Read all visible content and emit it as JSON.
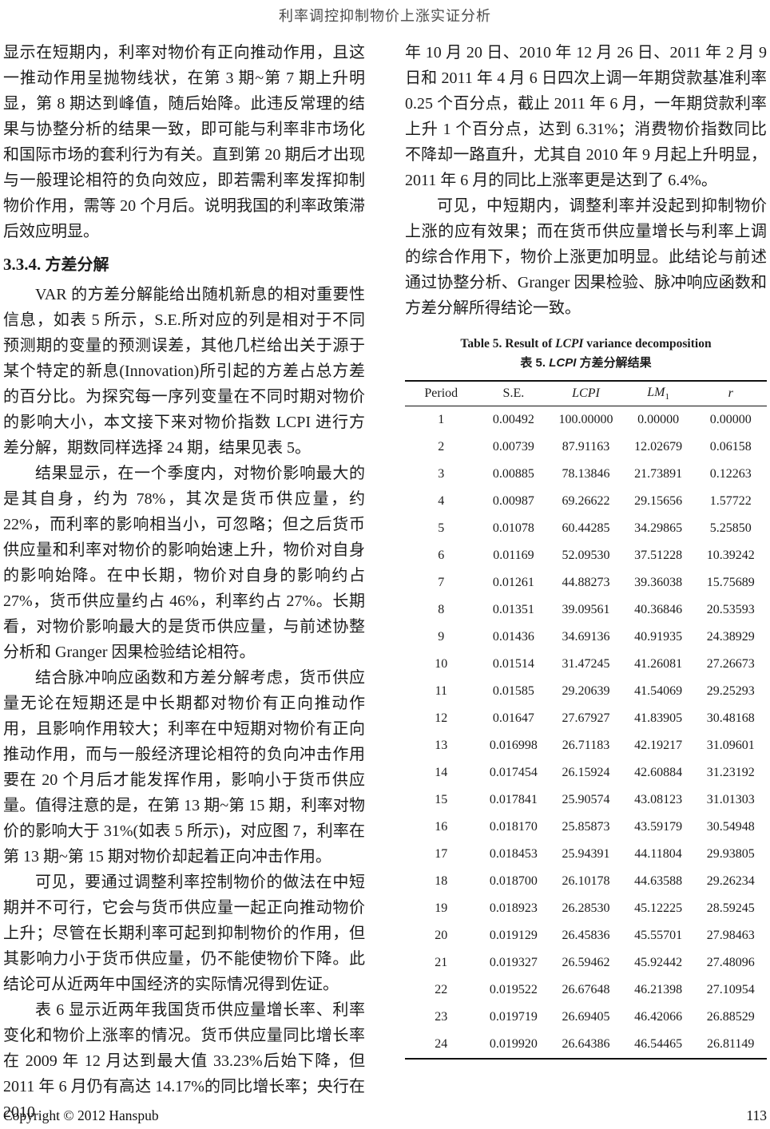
{
  "page": {
    "header_title": "利率调控抑制物价上涨实证分析",
    "footer": {
      "copyright": "Copyright © 2012 Hanspub",
      "page_number": "113"
    }
  },
  "left_column": {
    "para1": "显示在短期内，利率对物价有正向推动作用，且这一推动作用呈抛物线状，在第 3 期~第 7 期上升明显，第 8 期达到峰值，随后始降。此违反常理的结果与协整分析的结果一致，即可能与利率非市场化和国际市场的套利行为有关。直到第 20 期后才出现与一般理论相符的负向效应，即若需利率发挥抑制物价作用，需等 20 个月后。说明我国的利率政策滞后效应明显。",
    "section_heading": {
      "number": "3.3.4.",
      "title": "方差分解"
    },
    "para2": "VAR 的方差分解能给出随机新息的相对重要性信息，如表 5 所示，S.E.所对应的列是相对于不同预测期的变量的预测误差，其他几栏给出关于源于某个特定的新息(Innovation)所引起的方差占总方差的百分比。为探究每一序列变量在不同时期对物价的影响大小，本文接下来对物价指数 LCPI 进行方差分解，期数同样选择 24 期，结果见表 5。",
    "para3": "结果显示，在一个季度内，对物价影响最大的是其自身，约为 78%，其次是货币供应量，约 22%，而利率的影响相当小，可忽略；但之后货币供应量和利率对物价的影响始速上升，物价对自身的影响始降。在中长期，物价对自身的影响约占 27%，货币供应量约占 46%，利率约占 27%。长期看，对物价影响最大的是货币供应量，与前述协整分析和 Granger 因果检验结论相符。",
    "para4": "结合脉冲响应函数和方差分解考虑，货币供应量无论在短期还是中长期都对物价有正向推动作用，且影响作用较大；利率在中短期对物价有正向推动作用，而与一般经济理论相符的负向冲击作用要在 20 个月后才能发挥作用，影响小于货币供应量。值得注意的是，在第 13 期~第 15 期，利率对物价的影响大于 31%(如表 5 所示)，对应图 7，利率在第 13 期~第 15 期对物价却起着正向冲击作用。",
    "para5": "可见，要通过调整利率控制物价的做法在中短期并不可行，它会与货币供应量一起正向推动物价上升；尽管在长期利率可起到抑制物价的作用，但其影响力小于货币供应量，仍不能使物价下降。此结论可从近两年中国经济的实际情况得到佐证。",
    "para6": "表 6 显示近两年我国货币供应量增长率、利率变化和物价上涨率的情况。货币供应量同比增长率在 2009 年 12 月达到最大值 33.23%后始下降，但 2011 年 6 月仍有高达 14.17%的同比增长率；央行在 2010"
  },
  "right_column": {
    "para1": "年 10 月 20 日、2010 年 12 月 26 日、2011 年 2 月 9 日和 2011 年 4 月 6 日四次上调一年期贷款基准利率 0.25 个百分点，截止 2011 年 6 月，一年期贷款利率上升 1 个百分点，达到 6.31%；消费物价指数同比不降却一路直升，尤其自 2010 年 9 月起上升明显，2011 年 6 月的同比上涨率更是达到了 6.4%。",
    "para2": "可见，中短期内，调整利率并没起到抑制物价上涨的应有效果；而在货币供应量增长与利率上调的综合作用下，物价上涨更加明显。此结论与前述通过协整分析、Granger 因果检验、脉冲响应函数和方差分解所得结论一致。"
  },
  "table5": {
    "caption_en": {
      "prefix": "Table 5. Result of ",
      "italic": "LCPI",
      "suffix": " variance decomposition"
    },
    "caption_zh": {
      "prefix": "表 5. ",
      "italic": "LCPI",
      "suffix": " 方差分解结果"
    },
    "columns": [
      {
        "label": "Period",
        "italic": false
      },
      {
        "label": "S.E.",
        "italic": false
      },
      {
        "label": "LCPI",
        "italic": true
      },
      {
        "label": "LM",
        "sub": "1",
        "italic": true
      },
      {
        "label": "r",
        "italic": true
      }
    ],
    "rows": [
      [
        "1",
        "0.00492",
        "100.00000",
        "0.00000",
        "0.00000"
      ],
      [
        "2",
        "0.00739",
        "87.91163",
        "12.02679",
        "0.06158"
      ],
      [
        "3",
        "0.00885",
        "78.13846",
        "21.73891",
        "0.12263"
      ],
      [
        "4",
        "0.00987",
        "69.26622",
        "29.15656",
        "1.57722"
      ],
      [
        "5",
        "0.01078",
        "60.44285",
        "34.29865",
        "5.25850"
      ],
      [
        "6",
        "0.01169",
        "52.09530",
        "37.51228",
        "10.39242"
      ],
      [
        "7",
        "0.01261",
        "44.88273",
        "39.36038",
        "15.75689"
      ],
      [
        "8",
        "0.01351",
        "39.09561",
        "40.36846",
        "20.53593"
      ],
      [
        "9",
        "0.01436",
        "34.69136",
        "40.91935",
        "24.38929"
      ],
      [
        "10",
        "0.01514",
        "31.47245",
        "41.26081",
        "27.26673"
      ],
      [
        "11",
        "0.01585",
        "29.20639",
        "41.54069",
        "29.25293"
      ],
      [
        "12",
        "0.01647",
        "27.67927",
        "41.83905",
        "30.48168"
      ],
      [
        "13",
        "0.016998",
        "26.71183",
        "42.19217",
        "31.09601"
      ],
      [
        "14",
        "0.017454",
        "26.15924",
        "42.60884",
        "31.23192"
      ],
      [
        "15",
        "0.017841",
        "25.90574",
        "43.08123",
        "31.01303"
      ],
      [
        "16",
        "0.018170",
        "25.85873",
        "43.59179",
        "30.54948"
      ],
      [
        "17",
        "0.018453",
        "25.94391",
        "44.11804",
        "29.93805"
      ],
      [
        "18",
        "0.018700",
        "26.10178",
        "44.63588",
        "29.26234"
      ],
      [
        "19",
        "0.018923",
        "26.28530",
        "45.12225",
        "28.59245"
      ],
      [
        "20",
        "0.019129",
        "26.45836",
        "45.55701",
        "27.98463"
      ],
      [
        "21",
        "0.019327",
        "26.59462",
        "45.92442",
        "27.48096"
      ],
      [
        "22",
        "0.019522",
        "26.67648",
        "46.21398",
        "27.10954"
      ],
      [
        "23",
        "0.019719",
        "26.69405",
        "46.42066",
        "26.88529"
      ],
      [
        "24",
        "0.019920",
        "26.64386",
        "46.54465",
        "26.81149"
      ]
    ]
  }
}
